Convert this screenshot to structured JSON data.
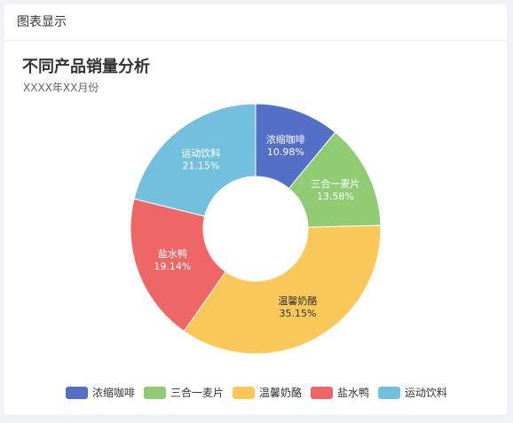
{
  "panel": {
    "header": "图表显示"
  },
  "chart_data": {
    "type": "pie",
    "variant": "donut",
    "title": "不同产品销量分析",
    "subtitle": "XXXX年XX月份",
    "categories": [
      "浓缩咖啡",
      "三合一麦片",
      "温馨奶酪",
      "盐水鸭",
      "运动饮料"
    ],
    "values": [
      10.98,
      13.58,
      35.15,
      19.14,
      21.15
    ],
    "labels": [
      "10.98%",
      "13.58%",
      "35.15%",
      "19.14%",
      "21.15%"
    ],
    "colors": [
      "#5470c6",
      "#91cc75",
      "#fac858",
      "#ee6666",
      "#73c0de"
    ],
    "legend_position": "bottom-center"
  }
}
